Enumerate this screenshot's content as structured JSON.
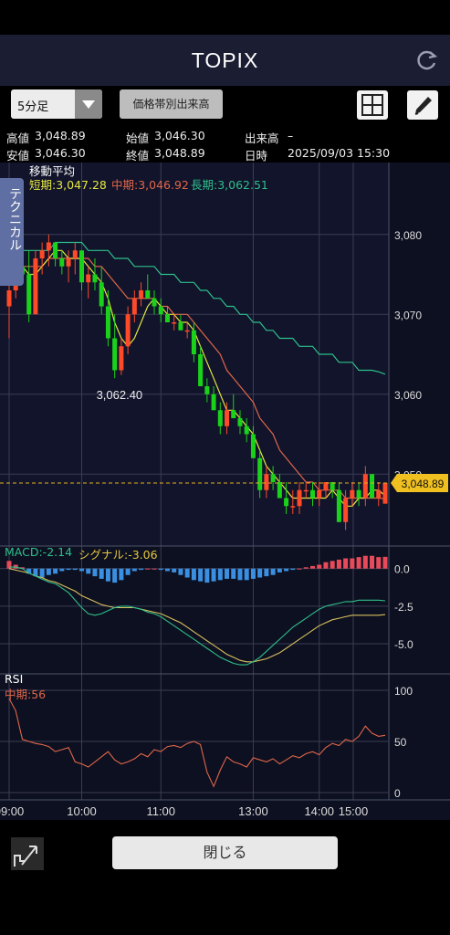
{
  "header": {
    "title": "TOPIX"
  },
  "toolbar": {
    "period_label": "5分足",
    "volume_button": "価格帯別出来高"
  },
  "info": {
    "high_label": "高値",
    "high_value": "3,048.89",
    "open_label": "始値",
    "open_value": "3,046.30",
    "volume_label": "出来高",
    "volume_value": "–",
    "low_label": "安値",
    "low_value": "3,046.30",
    "close_label": "終値",
    "close_value": "3,048.89",
    "date_label": "日時",
    "date_value": "2025/09/03 15:30"
  },
  "ma_legend": {
    "title": "移動平均",
    "short": "短期:3,047.28",
    "mid": "中期:3,046.92",
    "long": "長期:3,062.51"
  },
  "tech_tab": "テクニカル",
  "macd_legend": {
    "macd": "MACD:-2.14",
    "signal": "シグナル:-3.06"
  },
  "rsi_legend": {
    "title": "RSI",
    "mid": "中期:56"
  },
  "price_axis": [
    "3,080",
    "3,070",
    "3,060",
    "3,050"
  ],
  "price_tag": "3,048.89",
  "low_annotation": "3,062.40",
  "macd_axis": [
    "0.0",
    "-2.5",
    "-5.0"
  ],
  "rsi_axis": [
    "100",
    "50",
    "0"
  ],
  "time_axis": [
    "09:00",
    "10:00",
    "11:00",
    "13:00",
    "14:00",
    "15:00"
  ],
  "footer": {
    "close_label": "閉じる"
  },
  "colors": {
    "up": "#ff4a2a",
    "down": "#1ad21a",
    "short_ma": "#e6e640",
    "mid_ma": "#e0664a",
    "long_ma": "#2ebf8c",
    "macd_bar_pos": "#e84a5a",
    "macd_bar_neg": "#3a8fe0"
  },
  "chart_data": [
    {
      "type": "candlestick",
      "title": "TOPIX 5分足",
      "ylim": [
        3041,
        3089
      ],
      "x_ticks": [
        "09:00",
        "10:00",
        "11:00",
        "13:00",
        "14:00",
        "15:00"
      ],
      "candles": [
        [
          3071,
          3076,
          3067,
          3073
        ],
        [
          3073,
          3077,
          3072,
          3076
        ],
        [
          3076,
          3078,
          3074,
          3075
        ],
        [
          3075,
          3078,
          3069,
          3070
        ],
        [
          3070,
          3078,
          3070,
          3077
        ],
        [
          3077,
          3079,
          3075,
          3078
        ],
        [
          3078,
          3080,
          3076,
          3079
        ],
        [
          3079,
          3079,
          3076,
          3077
        ],
        [
          3077,
          3078,
          3075,
          3076
        ],
        [
          3076,
          3078,
          3074,
          3077
        ],
        [
          3077,
          3079,
          3075,
          3078
        ],
        [
          3078,
          3078,
          3073,
          3074
        ],
        [
          3074,
          3076,
          3072,
          3075
        ],
        [
          3075,
          3077,
          3073,
          3074
        ],
        [
          3074,
          3076,
          3070,
          3071
        ],
        [
          3071,
          3073,
          3066,
          3067
        ],
        [
          3067,
          3070,
          3062,
          3063
        ],
        [
          3063,
          3067,
          3062.4,
          3066
        ],
        [
          3066,
          3071,
          3065,
          3070
        ],
        [
          3070,
          3073,
          3069,
          3072
        ],
        [
          3072,
          3074,
          3071,
          3073
        ],
        [
          3073,
          3075,
          3072,
          3072
        ],
        [
          3072,
          3073,
          3070,
          3071
        ],
        [
          3071,
          3072,
          3069,
          3070
        ],
        [
          3070,
          3071,
          3069,
          3069
        ],
        [
          3069,
          3070,
          3068,
          3069
        ],
        [
          3069,
          3070,
          3068,
          3068
        ],
        [
          3068,
          3069,
          3067,
          3068
        ],
        [
          3068,
          3069,
          3064,
          3065
        ],
        [
          3065,
          3066,
          3061,
          3061
        ],
        [
          3061,
          3062,
          3059,
          3060
        ],
        [
          3060,
          3061,
          3058,
          3058
        ],
        [
          3058,
          3059,
          3055,
          3056
        ],
        [
          3056,
          3059,
          3055,
          3058
        ],
        [
          3058,
          3060,
          3057,
          3057
        ],
        [
          3057,
          3058,
          3055,
          3056
        ],
        [
          3056,
          3057,
          3054,
          3055
        ],
        [
          3055,
          3056,
          3052,
          3052
        ],
        [
          3052,
          3053,
          3047,
          3048
        ],
        [
          3048,
          3051,
          3047,
          3050
        ],
        [
          3050,
          3051,
          3048,
          3049
        ],
        [
          3049,
          3050,
          3047,
          3047
        ],
        [
          3047,
          3049,
          3045,
          3046
        ],
        [
          3046,
          3048,
          3045,
          3046
        ],
        [
          3046,
          3049,
          3045,
          3048
        ],
        [
          3048,
          3049,
          3047,
          3048
        ],
        [
          3048,
          3049,
          3046,
          3047
        ],
        [
          3047,
          3049,
          3046,
          3048
        ],
        [
          3048,
          3049,
          3047,
          3049
        ],
        [
          3049,
          3049,
          3047,
          3048
        ],
        [
          3048,
          3049,
          3044,
          3044
        ],
        [
          3044,
          3048,
          3043,
          3047
        ],
        [
          3047,
          3049,
          3046,
          3048
        ],
        [
          3048,
          3049,
          3046,
          3047
        ],
        [
          3047,
          3051,
          3046,
          3050
        ],
        [
          3050,
          3050,
          3047,
          3047
        ],
        [
          3047,
          3049,
          3046,
          3048
        ],
        [
          3046.3,
          3048.89,
          3046.3,
          3048.89
        ]
      ],
      "ma_short": [
        3074,
        3075,
        3076,
        3075,
        3075,
        3076,
        3077,
        3078,
        3078,
        3077,
        3077,
        3077,
        3076,
        3075,
        3074,
        3072,
        3069,
        3067,
        3066,
        3067,
        3069,
        3071,
        3072,
        3071,
        3070,
        3070,
        3069,
        3069,
        3068,
        3066,
        3064,
        3062,
        3060,
        3058,
        3058,
        3057,
        3056,
        3055,
        3053,
        3051,
        3050,
        3049,
        3048,
        3047,
        3047,
        3047,
        3047,
        3047,
        3047,
        3048,
        3047,
        3046,
        3046,
        3047,
        3047,
        3048,
        3048,
        3047.28
      ],
      "ma_mid": [
        3075,
        3075,
        3076,
        3076,
        3076,
        3076,
        3077,
        3077,
        3077,
        3077,
        3077,
        3077,
        3077,
        3076,
        3076,
        3075,
        3074,
        3073,
        3072,
        3072,
        3072,
        3072,
        3072,
        3071,
        3071,
        3070,
        3070,
        3070,
        3069,
        3068,
        3067,
        3066,
        3065,
        3063,
        3062,
        3061,
        3060,
        3059,
        3057,
        3056,
        3055,
        3053,
        3052,
        3051,
        3050,
        3049,
        3049,
        3048,
        3048,
        3048,
        3048,
        3047,
        3047,
        3047,
        3047,
        3047,
        3047,
        3046.92
      ],
      "ma_long": [
        3077,
        3077,
        3078,
        3078,
        3078,
        3078,
        3078,
        3079,
        3079,
        3079,
        3079,
        3079,
        3078,
        3078,
        3078,
        3078,
        3077,
        3077,
        3077,
        3076,
        3076,
        3076,
        3076,
        3075,
        3075,
        3075,
        3074,
        3074,
        3074,
        3073,
        3073,
        3072,
        3072,
        3071,
        3071,
        3070,
        3070,
        3069,
        3069,
        3068,
        3068,
        3067,
        3067,
        3067,
        3066,
        3066,
        3066,
        3065,
        3065,
        3065,
        3064,
        3064,
        3064,
        3063,
        3063,
        3063,
        3062.8,
        3062.51
      ],
      "last_price": 3048.89,
      "annotations": [
        "3,062.40"
      ]
    },
    {
      "type": "bar",
      "title": "MACD",
      "ylim": [
        -7,
        1.5
      ],
      "histogram": [
        0.6,
        0.3,
        0.1,
        -0.4,
        -0.6,
        -0.7,
        -0.5,
        -0.4,
        -0.2,
        -0.1,
        -0.1,
        -0.2,
        -0.4,
        -0.6,
        -0.8,
        -1.0,
        -1.1,
        -0.9,
        -0.5,
        -0.2,
        -0.1,
        0,
        0,
        -0.1,
        -0.2,
        -0.3,
        -0.5,
        -0.7,
        -0.9,
        -1.0,
        -1.1,
        -1.0,
        -0.9,
        -0.8,
        -0.8,
        -0.9,
        -0.9,
        -0.8,
        -0.7,
        -0.6,
        -0.5,
        -0.3,
        -0.2,
        -0.1,
        0,
        0.1,
        0.2,
        0.3,
        0.5,
        0.6,
        0.7,
        0.8,
        0.8,
        0.9,
        1.0,
        1.0,
        0.9,
        0.92
      ],
      "macd": [
        0.1,
        0.1,
        0,
        -0.3,
        -0.5,
        -0.7,
        -0.9,
        -1.0,
        -1.3,
        -1.6,
        -2.1,
        -2.6,
        -3.0,
        -3.1,
        -3.0,
        -2.8,
        -2.6,
        -2.5,
        -2.5,
        -2.6,
        -2.7,
        -2.9,
        -3.0,
        -3.2,
        -3.5,
        -3.8,
        -4.1,
        -4.4,
        -4.7,
        -5.0,
        -5.3,
        -5.6,
        -5.9,
        -6.1,
        -6.3,
        -6.4,
        -6.4,
        -6.2,
        -5.9,
        -5.5,
        -5.1,
        -4.7,
        -4.3,
        -3.9,
        -3.6,
        -3.3,
        -3.0,
        -2.7,
        -2.5,
        -2.4,
        -2.3,
        -2.2,
        -2.2,
        -2.1,
        -2.1,
        -2.1,
        -2.1,
        -2.14
      ],
      "signal": [
        0.0,
        -0.1,
        -0.2,
        -0.3,
        -0.5,
        -0.6,
        -0.8,
        -0.9,
        -1.1,
        -1.3,
        -1.5,
        -1.8,
        -2.0,
        -2.2,
        -2.4,
        -2.5,
        -2.6,
        -2.6,
        -2.6,
        -2.6,
        -2.7,
        -2.8,
        -2.9,
        -3.0,
        -3.2,
        -3.4,
        -3.6,
        -3.9,
        -4.2,
        -4.5,
        -4.8,
        -5.1,
        -5.4,
        -5.7,
        -5.9,
        -6.1,
        -6.2,
        -6.2,
        -6.1,
        -6.0,
        -5.8,
        -5.6,
        -5.3,
        -5.0,
        -4.7,
        -4.4,
        -4.1,
        -3.8,
        -3.6,
        -3.4,
        -3.3,
        -3.2,
        -3.1,
        -3.1,
        -3.1,
        -3.1,
        -3.1,
        -3.06
      ]
    },
    {
      "type": "line",
      "title": "RSI",
      "ylim": [
        0,
        100
      ],
      "series": [
        {
          "name": "中期",
          "values": [
            92,
            80,
            52,
            50,
            48,
            47,
            45,
            40,
            42,
            44,
            30,
            28,
            25,
            30,
            35,
            40,
            32,
            28,
            30,
            33,
            38,
            35,
            42,
            40,
            45,
            46,
            44,
            48,
            50,
            47,
            20,
            6,
            22,
            35,
            30,
            28,
            25,
            34,
            32,
            30,
            33,
            28,
            32,
            36,
            34,
            38,
            40,
            37,
            44,
            48,
            46,
            52,
            50,
            55,
            65,
            58,
            55,
            56
          ]
        }
      ]
    }
  ]
}
